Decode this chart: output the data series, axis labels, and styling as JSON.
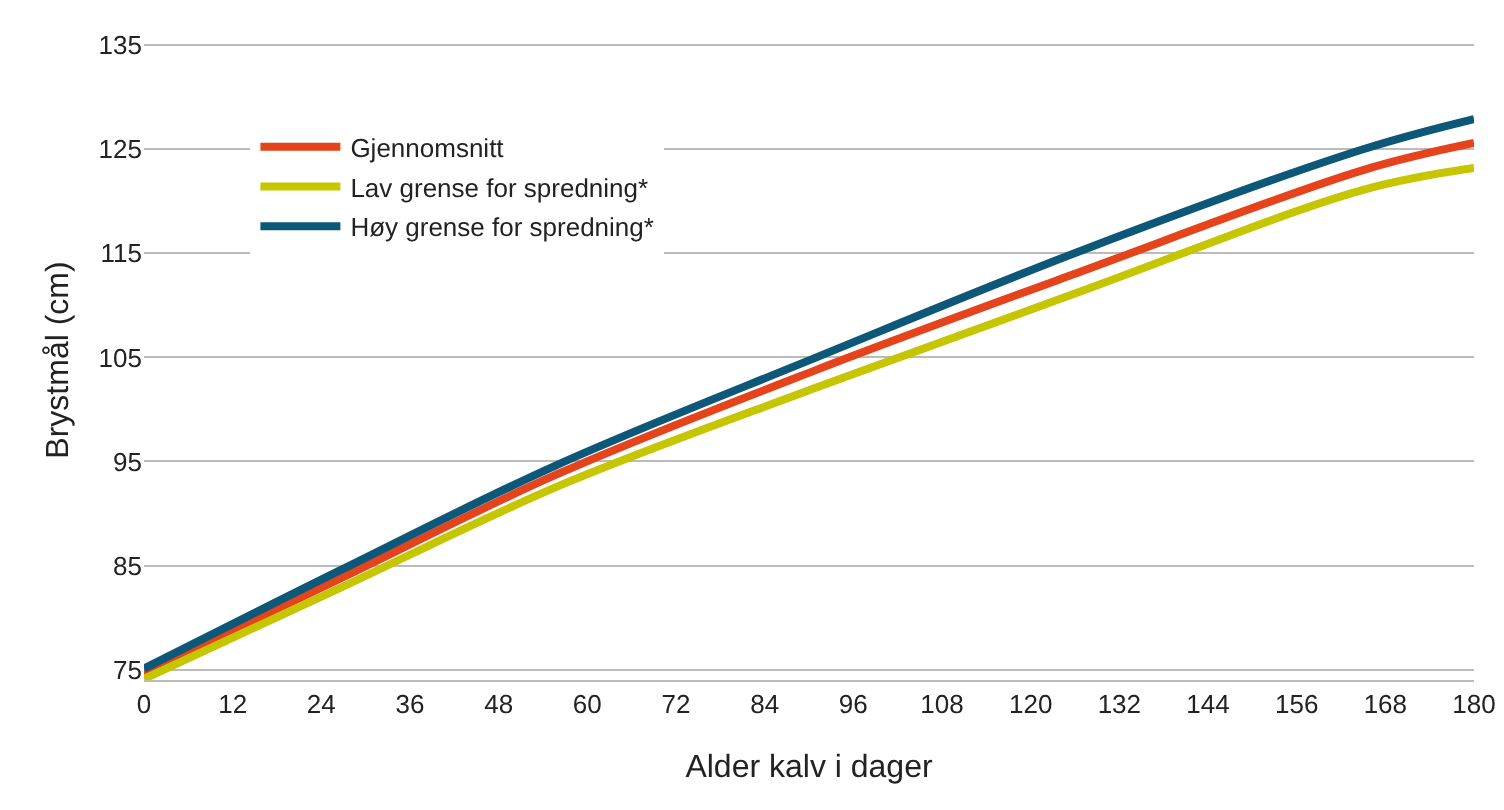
{
  "chart_data": {
    "type": "line",
    "xlabel": "Alder kalv i dager",
    "ylabel": "Brystmål (cm)",
    "x": [
      0,
      27,
      56,
      91,
      127,
      165,
      180
    ],
    "series": [
      {
        "name": "Gjennomsnitt",
        "color": "#e5431c",
        "values": [
          74.6,
          83.9,
          93.8,
          103.8,
          113.3,
          123.0,
          125.6
        ]
      },
      {
        "name": "Lav grense for spredning*",
        "color": "#c6c600",
        "values": [
          74.1,
          83.0,
          92.6,
          102.1,
          111.4,
          121.1,
          123.2
        ]
      },
      {
        "name": "Høy grense for spredning*",
        "color": "#0d5778",
        "values": [
          75.1,
          84.7,
          94.7,
          105.0,
          115.3,
          125.0,
          127.9
        ]
      }
    ],
    "xlim": [
      0,
      180
    ],
    "xticks": [
      0,
      12,
      24,
      36,
      48,
      60,
      72,
      84,
      96,
      108,
      120,
      132,
      144,
      156,
      168,
      180
    ],
    "ylim": [
      74,
      135.5
    ],
    "yticks": [
      75,
      85,
      95,
      105,
      115,
      125,
      135
    ],
    "grid": "y",
    "legend": "top left",
    "marker": "none",
    "line_style": "solid"
  }
}
